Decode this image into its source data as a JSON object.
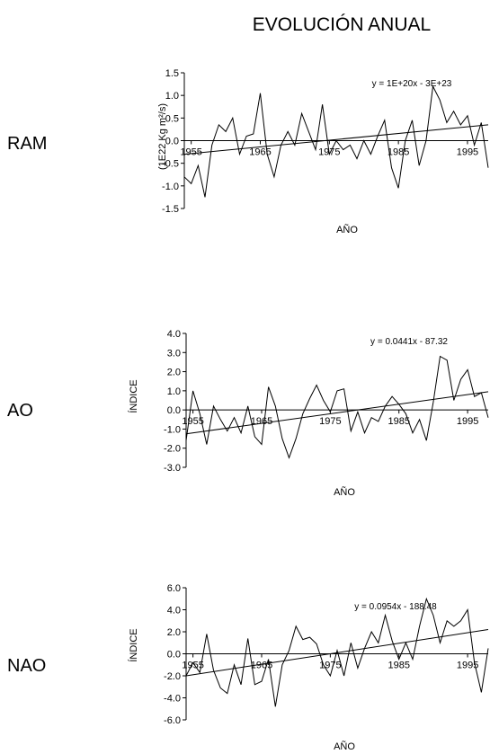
{
  "title": "EVOLUCIÓN ANUAL",
  "chart_data": [
    {
      "type": "line",
      "row_label": "RAM",
      "xlabel": "AÑO",
      "ylabel": "(1E22 Kg m²/s)",
      "ylim": [
        -1.5,
        1.5
      ],
      "yticks": [
        "1.5",
        "1.0",
        "0.5",
        "0.0",
        "-0.5",
        "-1.0",
        "-1.5"
      ],
      "xticks": [
        "1955",
        "1965",
        "1975",
        "1985",
        "1995"
      ],
      "xlim": [
        1954,
        1998
      ],
      "trend_label": "y = 1E+20x - 3E+23",
      "trend": {
        "x": [
          1954,
          1998
        ],
        "y": [
          -0.3,
          0.35
        ]
      },
      "x": [
        1954,
        1955,
        1956,
        1957,
        1958,
        1959,
        1960,
        1961,
        1962,
        1963,
        1964,
        1965,
        1966,
        1967,
        1968,
        1969,
        1970,
        1971,
        1972,
        1973,
        1974,
        1975,
        1976,
        1977,
        1978,
        1979,
        1980,
        1981,
        1982,
        1983,
        1984,
        1985,
        1986,
        1987,
        1988,
        1989,
        1990,
        1991,
        1992,
        1993,
        1994,
        1995,
        1996,
        1997,
        1998
      ],
      "y": [
        -0.8,
        -0.95,
        -0.55,
        -1.25,
        -0.1,
        0.35,
        0.2,
        0.5,
        -0.3,
        0.1,
        0.15,
        1.05,
        -0.3,
        -0.8,
        -0.1,
        0.2,
        -0.1,
        0.6,
        0.2,
        -0.2,
        0.8,
        -0.3,
        0.0,
        -0.2,
        -0.1,
        -0.4,
        0.0,
        -0.3,
        0.1,
        0.45,
        -0.6,
        -1.05,
        0.0,
        0.45,
        -0.55,
        0.0,
        1.2,
        0.9,
        0.4,
        0.65,
        0.35,
        0.55,
        -0.1,
        0.4,
        -0.6
      ]
    },
    {
      "type": "line",
      "row_label": "AO",
      "xlabel": "AÑO",
      "ylabel": "ÍNDICE",
      "ylim": [
        -3.0,
        4.0
      ],
      "yticks": [
        "4.0",
        "3.0",
        "2.0",
        "1.0",
        "0.0",
        "-1.0",
        "-2.0",
        "-3.0"
      ],
      "xticks": [
        "1955",
        "1965",
        "1975",
        "1985",
        "1995"
      ],
      "xlim": [
        1954,
        1998
      ],
      "trend_label": "y = 0.0441x - 87.32",
      "trend": {
        "x": [
          1954,
          1998
        ],
        "y": [
          -1.25,
          0.95
        ]
      },
      "x": [
        1954,
        1955,
        1956,
        1957,
        1958,
        1959,
        1960,
        1961,
        1962,
        1963,
        1964,
        1965,
        1966,
        1967,
        1968,
        1969,
        1970,
        1971,
        1972,
        1973,
        1974,
        1975,
        1976,
        1977,
        1978,
        1979,
        1980,
        1981,
        1982,
        1983,
        1984,
        1985,
        1986,
        1987,
        1988,
        1989,
        1990,
        1991,
        1992,
        1993,
        1994,
        1995,
        1996,
        1997,
        1998
      ],
      "y": [
        -1.6,
        1.0,
        -0.2,
        -1.8,
        0.2,
        -0.5,
        -1.1,
        -0.4,
        -1.2,
        0.2,
        -1.4,
        -1.8,
        1.2,
        0.2,
        -1.5,
        -2.5,
        -1.5,
        -0.2,
        0.6,
        1.3,
        0.5,
        -0.1,
        1.0,
        1.1,
        -1.1,
        -0.1,
        -1.2,
        -0.4,
        -0.6,
        0.2,
        0.7,
        0.3,
        -0.2,
        -1.2,
        -0.5,
        -1.6,
        0.4,
        2.8,
        2.6,
        0.5,
        1.6,
        2.1,
        0.7,
        0.9,
        -0.4
      ]
    },
    {
      "type": "line",
      "row_label": "NAO",
      "xlabel": "AÑO",
      "ylabel": "ÍNDICE",
      "ylim": [
        -6.0,
        6.0
      ],
      "yticks": [
        "6.0",
        "4.0",
        "2.0",
        "0.0",
        "-2.0",
        "-4.0",
        "-6.0"
      ],
      "xticks": [
        "1955",
        "1965",
        "1975",
        "1985",
        "1995"
      ],
      "xlim": [
        1954,
        1998
      ],
      "trend_label": "y = 0.0954x - 188.48",
      "trend": {
        "x": [
          1954,
          1998
        ],
        "y": [
          -2.0,
          2.2
        ]
      },
      "x": [
        1954,
        1955,
        1956,
        1957,
        1958,
        1959,
        1960,
        1961,
        1962,
        1963,
        1964,
        1965,
        1966,
        1967,
        1968,
        1969,
        1970,
        1971,
        1972,
        1973,
        1974,
        1975,
        1976,
        1977,
        1978,
        1979,
        1980,
        1981,
        1982,
        1983,
        1984,
        1985,
        1986,
        1987,
        1988,
        1989,
        1990,
        1991,
        1992,
        1993,
        1994,
        1995,
        1996,
        1997,
        1998
      ],
      "y": [
        -2.0,
        -0.8,
        -1.7,
        1.8,
        -1.5,
        -3.1,
        -3.6,
        -1.0,
        -2.8,
        1.4,
        -2.8,
        -2.5,
        -0.5,
        -4.8,
        -1.0,
        0.3,
        2.5,
        1.3,
        1.5,
        0.9,
        -1.0,
        -2.0,
        0.3,
        -2.0,
        1.0,
        -1.3,
        0.5,
        2.0,
        1.0,
        3.5,
        1.2,
        -0.5,
        1.0,
        -0.5,
        2.5,
        5.0,
        3.5,
        1.0,
        3.0,
        2.5,
        3.0,
        4.0,
        -0.8,
        -3.5,
        0.5
      ]
    }
  ]
}
